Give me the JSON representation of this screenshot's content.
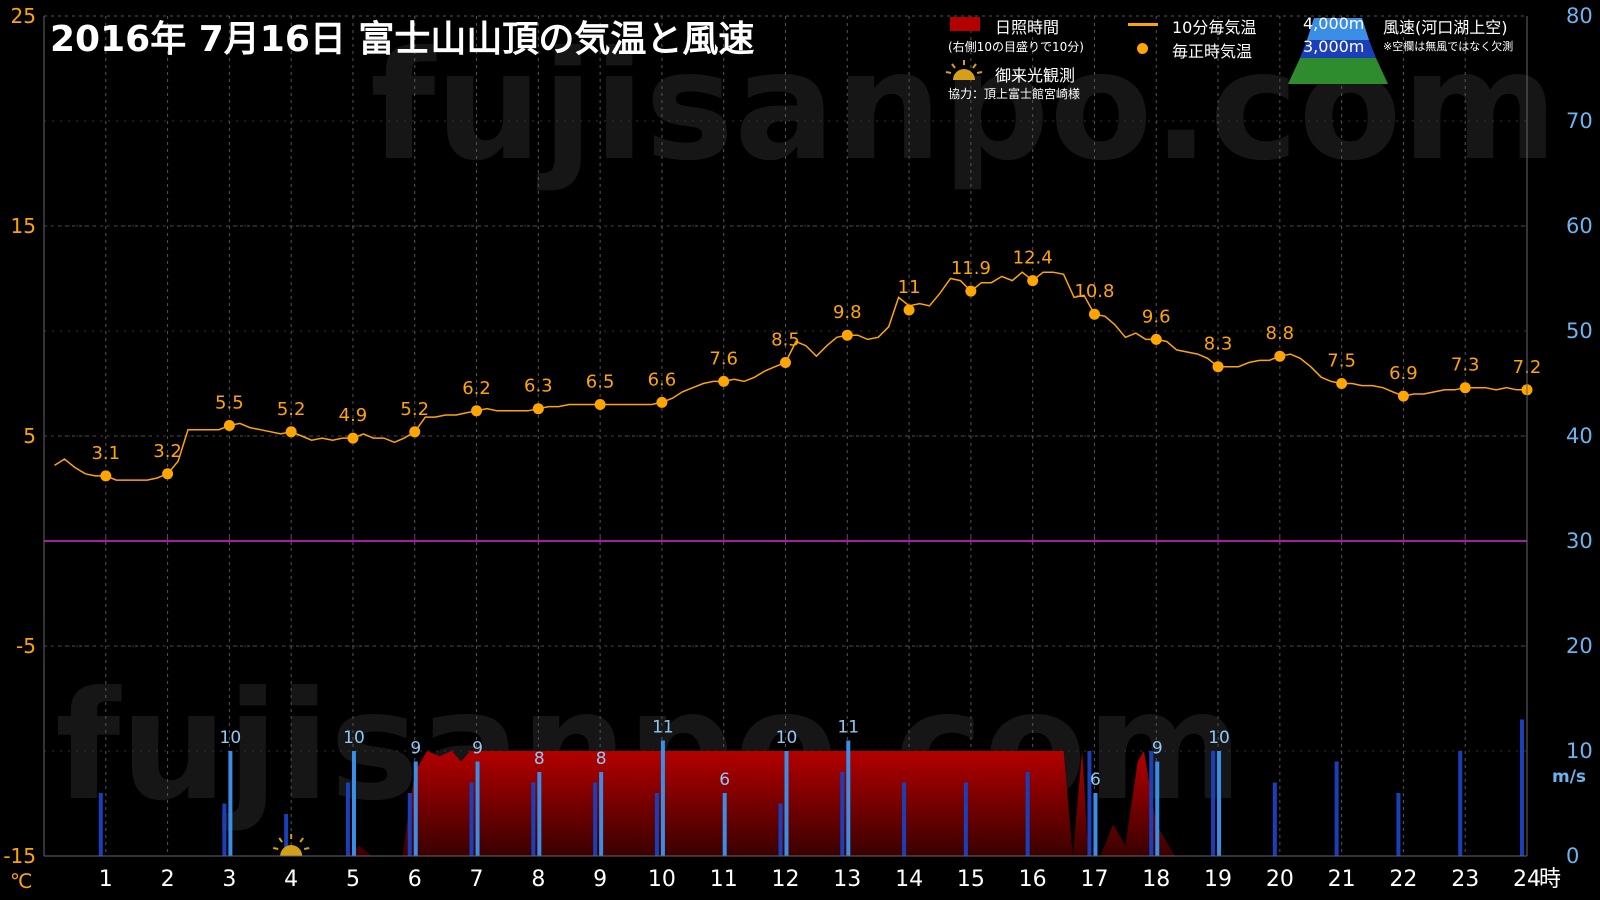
{
  "title": "2016年  7月16日   富士山山頂の気温と風速",
  "watermark": "fujisanpo.com",
  "legend": {
    "sunshine_label": "日照時間",
    "sunshine_note": "(右側10の目盛りで10分)",
    "sunrise_label": "御来光観測",
    "credit": "協力：頂上富士館宮崎様",
    "temp10_label": "10分毎気温",
    "hourly_label": "毎正時気温",
    "alt_4000": "4,000m",
    "alt_3000": "3,000m",
    "wind_label": "風速(河口湖上空)",
    "wind_note": "※空欄は無風ではなく欠測"
  },
  "colors": {
    "temp": "#ffa500",
    "wind_4000": "#3a8ee6",
    "wind_3000": "#1a3fb8",
    "sunshine": "#b30000",
    "zero_line": "#a020a0",
    "left_axis": "#ffa500",
    "right_axis": "#6ab4f0"
  },
  "chart_data": {
    "type": "line",
    "x_unit": "時",
    "left_axis": {
      "unit": "℃",
      "range": [
        -15,
        25
      ],
      "ticks": [
        25,
        15,
        5,
        -5,
        -15
      ]
    },
    "right_axis": {
      "unit": "m/s",
      "range": [
        0,
        80
      ],
      "ticks": [
        80,
        70,
        60,
        50,
        40,
        30,
        20,
        10,
        0
      ]
    },
    "x_ticks": [
      1,
      2,
      3,
      4,
      5,
      6,
      7,
      8,
      9,
      10,
      11,
      12,
      13,
      14,
      15,
      16,
      17,
      18,
      19,
      20,
      21,
      22,
      23,
      24
    ],
    "hourly_temperature": {
      "hours": [
        1,
        2,
        3,
        4,
        5,
        6,
        7,
        8,
        9,
        10,
        11,
        12,
        13,
        14,
        15,
        16,
        17,
        18,
        19,
        20,
        21,
        22,
        23,
        24
      ],
      "values": [
        3.1,
        3.2,
        5.5,
        5.2,
        4.9,
        5.2,
        6.2,
        6.3,
        6.5,
        6.6,
        7.6,
        8.5,
        9.8,
        11,
        11.9,
        12.4,
        10.8,
        9.6,
        8.3,
        8.8,
        7.5,
        6.9,
        7.3,
        7.2
      ]
    },
    "ten_minute_temperature": [
      [
        0.17,
        3.6
      ],
      [
        0.33,
        3.9
      ],
      [
        0.5,
        3.5
      ],
      [
        0.67,
        3.2
      ],
      [
        0.83,
        3.1
      ],
      [
        1,
        3.1
      ],
      [
        1.17,
        2.9
      ],
      [
        1.33,
        2.9
      ],
      [
        1.5,
        2.9
      ],
      [
        1.67,
        2.9
      ],
      [
        1.83,
        3.0
      ],
      [
        2,
        3.2
      ],
      [
        2.17,
        3.8
      ],
      [
        2.33,
        5.3
      ],
      [
        2.5,
        5.3
      ],
      [
        2.67,
        5.3
      ],
      [
        2.83,
        5.3
      ],
      [
        3,
        5.5
      ],
      [
        3.17,
        5.6
      ],
      [
        3.33,
        5.4
      ],
      [
        3.5,
        5.3
      ],
      [
        3.67,
        5.2
      ],
      [
        3.83,
        5.1
      ],
      [
        4,
        5.2
      ],
      [
        4.17,
        5.0
      ],
      [
        4.33,
        4.8
      ],
      [
        4.5,
        4.9
      ],
      [
        4.67,
        4.8
      ],
      [
        4.83,
        4.9
      ],
      [
        5,
        4.9
      ],
      [
        5.17,
        5.1
      ],
      [
        5.33,
        4.9
      ],
      [
        5.5,
        4.9
      ],
      [
        5.67,
        4.7
      ],
      [
        5.83,
        4.9
      ],
      [
        6,
        5.2
      ],
      [
        6.17,
        5.9
      ],
      [
        6.33,
        5.9
      ],
      [
        6.5,
        6.0
      ],
      [
        6.67,
        6.0
      ],
      [
        6.83,
        6.1
      ],
      [
        7,
        6.2
      ],
      [
        7.17,
        6.3
      ],
      [
        7.33,
        6.2
      ],
      [
        7.5,
        6.2
      ],
      [
        7.67,
        6.2
      ],
      [
        7.83,
        6.2
      ],
      [
        8,
        6.3
      ],
      [
        8.17,
        6.4
      ],
      [
        8.33,
        6.4
      ],
      [
        8.5,
        6.5
      ],
      [
        8.67,
        6.5
      ],
      [
        8.83,
        6.5
      ],
      [
        9,
        6.5
      ],
      [
        9.17,
        6.5
      ],
      [
        9.33,
        6.5
      ],
      [
        9.5,
        6.5
      ],
      [
        9.67,
        6.5
      ],
      [
        9.83,
        6.5
      ],
      [
        10,
        6.6
      ],
      [
        10.17,
        6.8
      ],
      [
        10.33,
        7.1
      ],
      [
        10.5,
        7.3
      ],
      [
        10.67,
        7.5
      ],
      [
        10.83,
        7.6
      ],
      [
        11,
        7.6
      ],
      [
        11.17,
        7.7
      ],
      [
        11.33,
        7.6
      ],
      [
        11.5,
        7.8
      ],
      [
        11.67,
        8.1
      ],
      [
        11.83,
        8.3
      ],
      [
        12,
        8.5
      ],
      [
        12.17,
        9.5
      ],
      [
        12.33,
        9.3
      ],
      [
        12.5,
        8.8
      ],
      [
        12.67,
        9.3
      ],
      [
        12.83,
        9.7
      ],
      [
        13,
        9.8
      ],
      [
        13.17,
        9.8
      ],
      [
        13.33,
        9.6
      ],
      [
        13.5,
        9.7
      ],
      [
        13.67,
        10.2
      ],
      [
        13.83,
        11.6
      ],
      [
        14,
        11.2
      ],
      [
        14.17,
        11.3
      ],
      [
        14.33,
        11.2
      ],
      [
        14.5,
        11.8
      ],
      [
        14.67,
        12.5
      ],
      [
        14.83,
        12.4
      ],
      [
        15,
        11.9
      ],
      [
        15.17,
        12.3
      ],
      [
        15.33,
        12.3
      ],
      [
        15.5,
        12.6
      ],
      [
        15.67,
        12.4
      ],
      [
        15.83,
        12.8
      ],
      [
        16,
        12.4
      ],
      [
        16.17,
        12.8
      ],
      [
        16.33,
        12.8
      ],
      [
        16.5,
        12.7
      ],
      [
        16.67,
        11.6
      ],
      [
        16.83,
        11.7
      ],
      [
        17,
        10.8
      ],
      [
        17.17,
        10.7
      ],
      [
        17.33,
        10.3
      ],
      [
        17.5,
        9.7
      ],
      [
        17.67,
        9.9
      ],
      [
        17.83,
        9.6
      ],
      [
        18,
        9.6
      ],
      [
        18.17,
        9.5
      ],
      [
        18.33,
        9.1
      ],
      [
        18.5,
        9.0
      ],
      [
        18.67,
        8.9
      ],
      [
        18.83,
        8.7
      ],
      [
        19,
        8.3
      ],
      [
        19.17,
        8.3
      ],
      [
        19.33,
        8.3
      ],
      [
        19.5,
        8.5
      ],
      [
        19.67,
        8.6
      ],
      [
        19.83,
        8.6
      ],
      [
        20,
        8.8
      ],
      [
        20.17,
        8.9
      ],
      [
        20.33,
        8.7
      ],
      [
        20.5,
        8.3
      ],
      [
        20.67,
        7.8
      ],
      [
        20.83,
        7.6
      ],
      [
        21,
        7.5
      ],
      [
        21.17,
        7.5
      ],
      [
        21.33,
        7.4
      ],
      [
        21.5,
        7.4
      ],
      [
        21.67,
        7.3
      ],
      [
        21.83,
        7.1
      ],
      [
        22,
        6.9
      ],
      [
        22.17,
        7.0
      ],
      [
        22.33,
        7.0
      ],
      [
        22.5,
        7.1
      ],
      [
        22.67,
        7.2
      ],
      [
        22.83,
        7.2
      ],
      [
        23,
        7.3
      ],
      [
        23.17,
        7.3
      ],
      [
        23.33,
        7.3
      ],
      [
        23.5,
        7.2
      ],
      [
        23.67,
        7.3
      ],
      [
        23.83,
        7.2
      ],
      [
        24,
        7.2
      ]
    ],
    "wind_3000m": [
      [
        1,
        6
      ],
      [
        3,
        5
      ],
      [
        4,
        4
      ],
      [
        5,
        7
      ],
      [
        6,
        6
      ],
      [
        7,
        7
      ],
      [
        8,
        7
      ],
      [
        9,
        7
      ],
      [
        10,
        6
      ],
      [
        12,
        5
      ],
      [
        13,
        8
      ],
      [
        14,
        7
      ],
      [
        15,
        7
      ],
      [
        16,
        8
      ],
      [
        17,
        10
      ],
      [
        18,
        10
      ],
      [
        19,
        10
      ],
      [
        20,
        7
      ],
      [
        21,
        9
      ],
      [
        22,
        6
      ],
      [
        23,
        10
      ],
      [
        24,
        13
      ]
    ],
    "wind_4000m": [
      [
        3,
        10
      ],
      [
        5,
        10
      ],
      [
        6,
        9
      ],
      [
        7,
        9
      ],
      [
        8,
        8
      ],
      [
        9,
        8
      ],
      [
        10,
        11
      ],
      [
        11,
        6
      ],
      [
        12,
        10
      ],
      [
        13,
        11
      ],
      [
        17,
        6
      ],
      [
        18,
        9
      ],
      [
        19,
        10
      ]
    ],
    "wind_labels": [
      [
        3,
        10
      ],
      [
        5,
        10
      ],
      [
        6,
        9
      ],
      [
        7,
        9
      ],
      [
        8,
        8
      ],
      [
        9,
        8
      ],
      [
        10,
        11
      ],
      [
        11,
        6
      ],
      [
        12,
        10
      ],
      [
        13,
        11
      ],
      [
        17,
        6
      ],
      [
        18,
        9
      ],
      [
        19,
        10
      ]
    ],
    "sunshine_minutes": [
      [
        0,
        0
      ],
      [
        4.9,
        0
      ],
      [
        5.1,
        1
      ],
      [
        5.3,
        0
      ],
      [
        5.8,
        0
      ],
      [
        6.0,
        8
      ],
      [
        6.2,
        10
      ],
      [
        6.4,
        9.5
      ],
      [
        6.6,
        10
      ],
      [
        6.75,
        9
      ],
      [
        6.9,
        10
      ],
      [
        16.5,
        10
      ],
      [
        16.65,
        0
      ],
      [
        16.8,
        10
      ],
      [
        16.9,
        0
      ],
      [
        17.1,
        0
      ],
      [
        17.3,
        3
      ],
      [
        17.5,
        1
      ],
      [
        17.7,
        9
      ],
      [
        17.8,
        10
      ],
      [
        18.0,
        3
      ],
      [
        18.3,
        0
      ],
      [
        24,
        0
      ]
    ],
    "sunrise_hour": 4
  }
}
